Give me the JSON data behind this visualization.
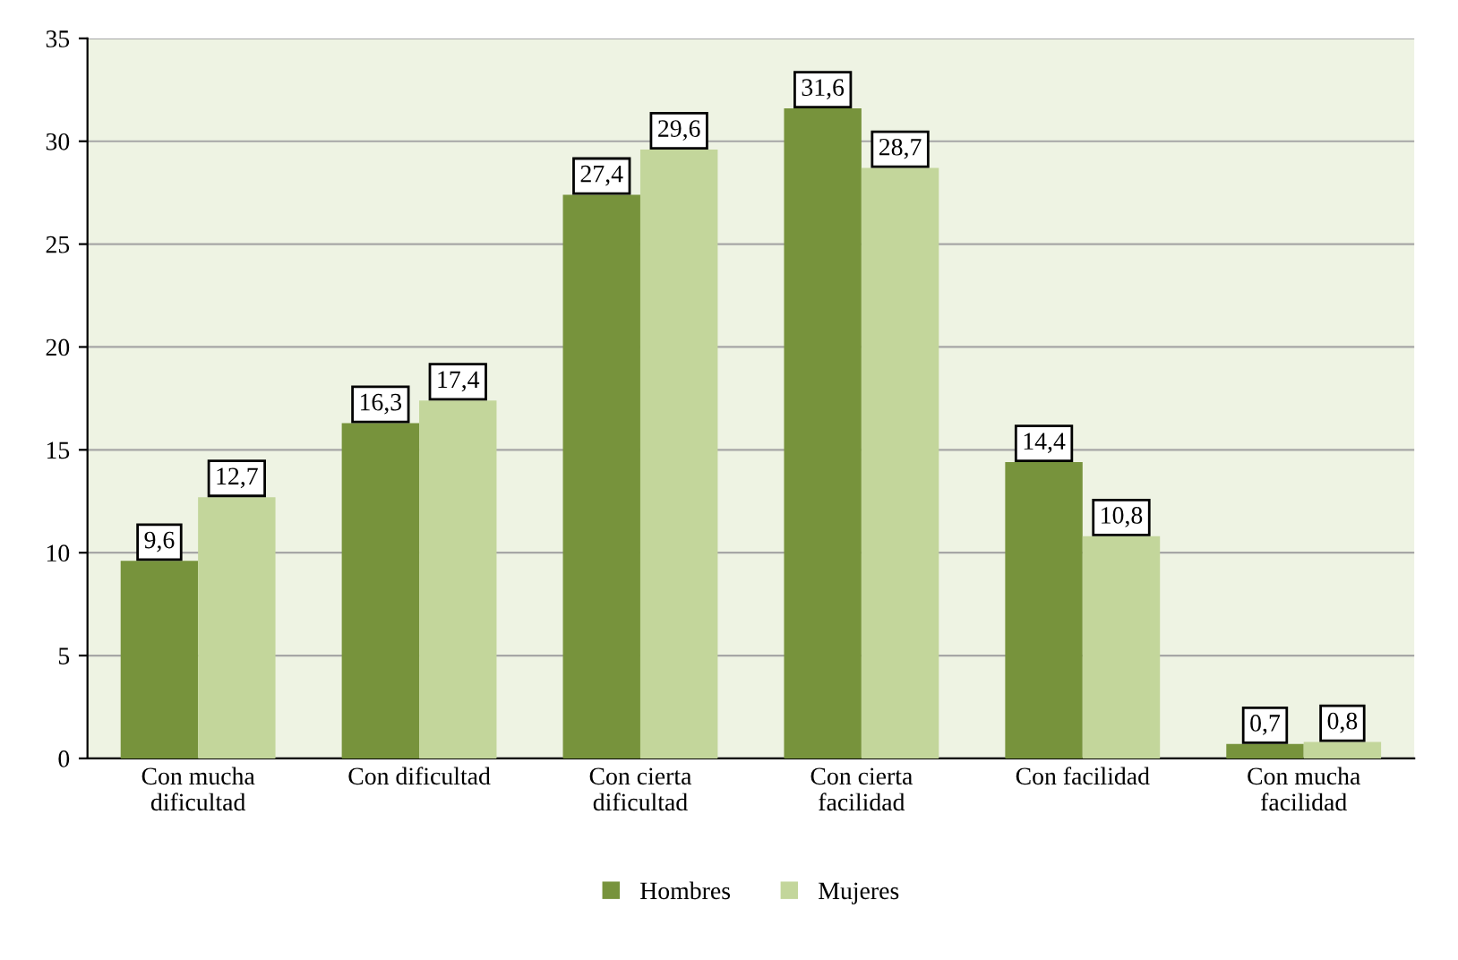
{
  "chart_data": {
    "type": "bar",
    "categories": [
      "Con mucha\ndificultad",
      "Con dificultad",
      "Con cierta\ndificultad",
      "Con cierta\nfacilidad",
      "Con facilidad",
      "Con mucha\nfacilidad"
    ],
    "series": [
      {
        "name": "Hombres",
        "color": "#77933c",
        "values": [
          9.6,
          16.3,
          27.4,
          31.6,
          14.4,
          0.7
        ],
        "value_labels": [
          "9,6",
          "16,3",
          "27,4",
          "31,6",
          "14,4",
          "0,7"
        ]
      },
      {
        "name": "Mujeres",
        "color": "#c3d69b",
        "values": [
          12.7,
          17.4,
          29.6,
          28.7,
          10.8,
          0.8
        ],
        "value_labels": [
          "12,7",
          "17,4",
          "29,6",
          "28,7",
          "10,8",
          "0,8"
        ]
      }
    ],
    "ylim": [
      0,
      35
    ],
    "yticks": [
      0,
      5,
      10,
      15,
      20,
      25,
      30,
      35
    ],
    "grid": "y",
    "legend": "bottom"
  }
}
